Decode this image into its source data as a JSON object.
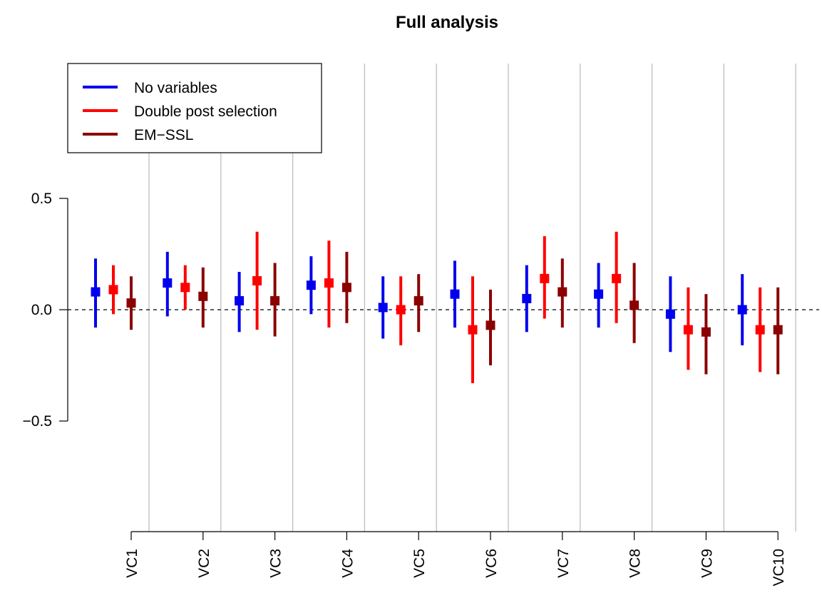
{
  "chart_data": {
    "type": "scatter",
    "title": "Full analysis",
    "xlabel": "",
    "ylabel": "",
    "categories": [
      "VC1",
      "VC2",
      "VC3",
      "VC4",
      "VC5",
      "VC6",
      "VC7",
      "VC8",
      "VC9",
      "VC10"
    ],
    "y_ticks": [
      "0.5",
      "0.0",
      "−0.5"
    ],
    "y_tick_values": [
      0.5,
      0.0,
      -0.5
    ],
    "reference_line": 0.0,
    "legend_position": "top-left",
    "grid": "vertical lines between categories",
    "series": [
      {
        "name": "No variables",
        "color": "#0000ee",
        "values": [
          0.08,
          0.12,
          0.04,
          0.11,
          0.01,
          0.07,
          0.05,
          0.07,
          -0.02,
          0.0
        ],
        "lower": [
          -0.08,
          -0.03,
          -0.1,
          -0.02,
          -0.13,
          -0.08,
          -0.1,
          -0.08,
          -0.19,
          -0.16
        ],
        "upper": [
          0.23,
          0.26,
          0.17,
          0.24,
          0.15,
          0.22,
          0.2,
          0.21,
          0.15,
          0.16
        ]
      },
      {
        "name": "Double post selection",
        "color": "#ff0000",
        "values": [
          0.09,
          0.1,
          0.13,
          0.12,
          0.0,
          -0.09,
          0.14,
          0.14,
          -0.09,
          -0.09
        ],
        "lower": [
          -0.02,
          0.0,
          -0.09,
          -0.08,
          -0.16,
          -0.33,
          -0.04,
          -0.06,
          -0.27,
          -0.28
        ],
        "upper": [
          0.2,
          0.2,
          0.35,
          0.31,
          0.15,
          0.15,
          0.33,
          0.35,
          0.1,
          0.1
        ]
      },
      {
        "name": "EM−SSL",
        "color": "#8b0000",
        "values": [
          0.03,
          0.06,
          0.04,
          0.1,
          0.04,
          -0.07,
          0.08,
          0.02,
          -0.1,
          -0.09
        ],
        "lower": [
          -0.09,
          -0.08,
          -0.12,
          -0.06,
          -0.1,
          -0.25,
          -0.08,
          -0.15,
          -0.29,
          -0.29
        ],
        "upper": [
          0.15,
          0.19,
          0.21,
          0.26,
          0.16,
          0.09,
          0.23,
          0.21,
          0.07,
          0.1
        ]
      }
    ]
  }
}
